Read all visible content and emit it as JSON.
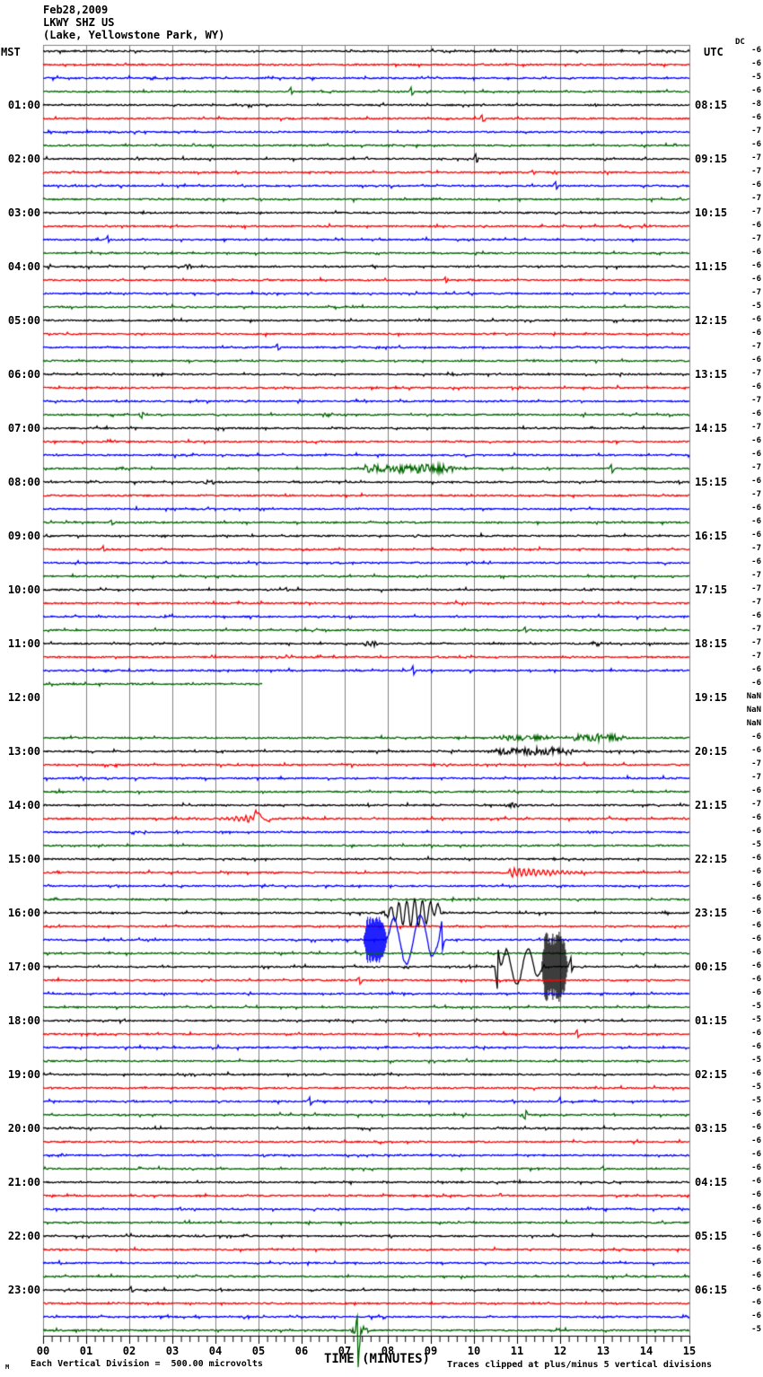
{
  "header": {
    "date": "Feb28,2009",
    "station": "LKWY SHZ US",
    "location": "(Lake, Yellowstone Park, WY)"
  },
  "axis": {
    "left_header": "MST",
    "right_header": "UTC",
    "dc_label": "DC",
    "x_axis_label": "TIME (MINUTES)",
    "minute_labels": [
      "00",
      "01",
      "02",
      "03",
      "04",
      "05",
      "06",
      "07",
      "08",
      "09",
      "10",
      "11",
      "12",
      "13",
      "14",
      "15"
    ]
  },
  "footer": {
    "scale_note": "Each Vertical Division =  500.00 microvolts",
    "clip_note": "Traces clipped at plus/minus 5 vertical divisions",
    "corner_mark": "M"
  },
  "chart_data": {
    "type": "line",
    "subtype": "helicorder-seismogram",
    "title": "LKWY SHZ US (Lake, Yellowstone Park, WY) Feb28,2009",
    "rows": 96,
    "minutes_per_row": 15,
    "x_range": [
      0,
      15
    ],
    "xlabel": "TIME (MINUTES)",
    "grid": true,
    "grid_color": "#808080",
    "trace_color_cycle": [
      "#000000",
      "#ff0000",
      "#0000ff",
      "#006600"
    ],
    "label_row_step": 4,
    "left_time_labels": [
      "01:00",
      "02:00",
      "03:00",
      "04:00",
      "05:00",
      "06:00",
      "07:00",
      "08:00",
      "09:00",
      "10:00",
      "11:00",
      "12:00",
      "13:00",
      "14:00",
      "15:00",
      "16:00",
      "17:00",
      "18:00",
      "19:00",
      "20:00",
      "21:00",
      "22:00",
      "23:00"
    ],
    "right_time_labels": [
      "08:15",
      "09:15",
      "10:15",
      "11:15",
      "12:15",
      "13:15",
      "14:15",
      "15:15",
      "16:15",
      "17:15",
      "18:15",
      "19:15",
      "20:15",
      "21:15",
      "22:15",
      "23:15",
      "00:15",
      "01:15",
      "02:15",
      "03:15",
      "04:15",
      "05:15",
      "06:15"
    ],
    "dc_offsets": [
      "-6",
      "-6",
      "-5",
      "-6",
      "-8",
      "-6",
      "-7",
      "-6",
      "-7",
      "-7",
      "-6",
      "-7",
      "-7",
      "-6",
      "-7",
      "-6",
      "-6",
      "-6",
      "-7",
      "-5",
      "-6",
      "-6",
      "-7",
      "-6",
      "-7",
      "-6",
      "-7",
      "-6",
      "-7",
      "-6",
      "-6",
      "-7",
      "-6",
      "-7",
      "-6",
      "-6",
      "-6",
      "-7",
      "-6",
      "-7",
      "-7",
      "-7",
      "-6",
      "-7",
      "-7",
      "-7",
      "-6",
      "-6",
      "NaN",
      "NaN",
      "NaN",
      "-6",
      "-6",
      "-7",
      "-7",
      "-6",
      "-7",
      "-6",
      "-6",
      "-5",
      "-6",
      "-6",
      "-6",
      "-6",
      "-6",
      "-6",
      "-6",
      "-6",
      "-6",
      "-6",
      "-6",
      "-5",
      "-5",
      "-6",
      "-6",
      "-5",
      "-6",
      "-5",
      "-5",
      "-6",
      "-6",
      "-6",
      "-6",
      "-6",
      "-6",
      "-6",
      "-6",
      "-6",
      "-6",
      "-6",
      "-6",
      "-6",
      "-6",
      "-6",
      "-6",
      "-5"
    ],
    "missing_rows": [
      48,
      49,
      50
    ],
    "partial_rows": [
      {
        "row": 47,
        "end_minute": 5.1
      }
    ],
    "events": [
      {
        "row": 3,
        "type": "spike",
        "t": 5.75,
        "amp": 4
      },
      {
        "row": 3,
        "type": "spike",
        "t": 8.55,
        "amp": 5
      },
      {
        "row": 5,
        "type": "spike",
        "t": 10.2,
        "amp": 5
      },
      {
        "row": 8,
        "type": "spike",
        "t": 10.05,
        "amp": 6
      },
      {
        "row": 10,
        "type": "spike",
        "t": 11.9,
        "amp": 5
      },
      {
        "row": 14,
        "type": "spike",
        "t": 1.5,
        "amp": 4
      },
      {
        "row": 16,
        "type": "fuzz",
        "t0": 3.1,
        "t1": 3.5,
        "amp": 2.5
      },
      {
        "row": 17,
        "type": "spike",
        "t": 9.35,
        "amp": 4
      },
      {
        "row": 22,
        "type": "spike",
        "t": 5.45,
        "amp": 4
      },
      {
        "row": 27,
        "type": "spike",
        "t": 2.3,
        "amp": 4,
        "dir": -1
      },
      {
        "row": 27,
        "type": "fuzz",
        "t0": 6.4,
        "t1": 6.8,
        "amp": 2.5
      },
      {
        "row": 31,
        "type": "fuzz",
        "t0": 1.6,
        "t1": 2.0,
        "amp": 2
      },
      {
        "row": 31,
        "type": "fuzz",
        "t0": 7.2,
        "t1": 9.9,
        "amp": 4.5
      },
      {
        "row": 31,
        "type": "spike",
        "t": 13.2,
        "amp": 6
      },
      {
        "row": 32,
        "type": "fuzz",
        "t0": 3.7,
        "t1": 4.0,
        "amp": 2.5
      },
      {
        "row": 35,
        "type": "spike",
        "t": 1.6,
        "amp": 3
      },
      {
        "row": 37,
        "type": "spike",
        "t": 1.4,
        "amp": 4
      },
      {
        "row": 40,
        "type": "spike",
        "t": 5.65,
        "amp": 3
      },
      {
        "row": 43,
        "type": "spike",
        "t": 11.2,
        "amp": 4
      },
      {
        "row": 44,
        "type": "fuzz",
        "t0": 7.4,
        "t1": 7.8,
        "amp": 3
      },
      {
        "row": 44,
        "type": "fuzz",
        "t0": 12.7,
        "t1": 13.0,
        "amp": 2.5
      },
      {
        "row": 46,
        "type": "spike",
        "t": 8.6,
        "amp": 6
      },
      {
        "row": 51,
        "type": "fuzz",
        "t0": 10.5,
        "t1": 11.8,
        "amp": 2.5
      },
      {
        "row": 51,
        "type": "fuzz",
        "t0": 12.2,
        "t1": 13.6,
        "amp": 4
      },
      {
        "row": 52,
        "type": "fuzz",
        "t0": 10.35,
        "t1": 12.5,
        "amp": 4
      },
      {
        "row": 56,
        "type": "fuzz",
        "t0": 10.7,
        "t1": 11.1,
        "amp": 2.5
      },
      {
        "row": 57,
        "type": "burst",
        "t0": 3.35,
        "t1": 4.95,
        "amp": 4,
        "freq": 9,
        "env": "grow"
      },
      {
        "row": 57,
        "type": "burst",
        "t0": 4.85,
        "t1": 5.45,
        "amp": 9,
        "freq": 1.9,
        "env": "decay"
      },
      {
        "row": 61,
        "type": "burst",
        "t0": 10.8,
        "t1": 13.0,
        "amp": 5,
        "freq": 9,
        "env": "decay"
      },
      {
        "row": 64,
        "type": "burst",
        "t0": 7.85,
        "t1": 9.35,
        "amp": 15,
        "freq": 5.5,
        "env": "mid"
      },
      {
        "row": 64,
        "type": "burst",
        "t0": 8.95,
        "t1": 9.45,
        "amp": 9,
        "freq": 1.2,
        "env": "decay"
      },
      {
        "row": 66,
        "type": "vburst",
        "t0": 7.42,
        "t1": 7.98,
        "amp": 22
      },
      {
        "row": 66,
        "type": "burst",
        "t0": 7.95,
        "t1": 9.22,
        "amp": 27,
        "freq": 1.55,
        "env": "flat"
      },
      {
        "row": 66,
        "type": "spike",
        "t": 9.25,
        "amp": 20
      },
      {
        "row": 68,
        "type": "spike",
        "t": 10.55,
        "amp": 28,
        "dir": -1
      },
      {
        "row": 68,
        "type": "burst",
        "t0": 10.6,
        "t1": 11.6,
        "amp": 20,
        "freq": 1.9,
        "env": "flat"
      },
      {
        "row": 68,
        "type": "vburst",
        "t0": 11.55,
        "t1": 12.18,
        "amp": 34
      },
      {
        "row": 68,
        "type": "spike",
        "t": 12.25,
        "amp": 10
      },
      {
        "row": 69,
        "type": "spike",
        "t": 7.35,
        "amp": 5
      },
      {
        "row": 73,
        "type": "spike",
        "t": 12.4,
        "amp": 5
      },
      {
        "row": 78,
        "type": "spike",
        "t": 6.2,
        "amp": 5
      },
      {
        "row": 78,
        "type": "spike",
        "t": 12.0,
        "amp": 4
      },
      {
        "row": 79,
        "type": "spike",
        "t": 11.2,
        "amp": 6,
        "dir": -1
      },
      {
        "row": 83,
        "type": "spike",
        "t": 13.0,
        "amp": 3
      },
      {
        "row": 86,
        "type": "spike",
        "t": 3.2,
        "amp": 2.5
      },
      {
        "row": 92,
        "type": "spike",
        "t": 2.05,
        "amp": 4
      },
      {
        "row": 95,
        "type": "fuzz",
        "t0": 7.1,
        "t1": 7.6,
        "amp": 5
      },
      {
        "row": 95,
        "type": "spike",
        "t": 7.3,
        "amp": 12,
        "down": 45
      }
    ]
  }
}
